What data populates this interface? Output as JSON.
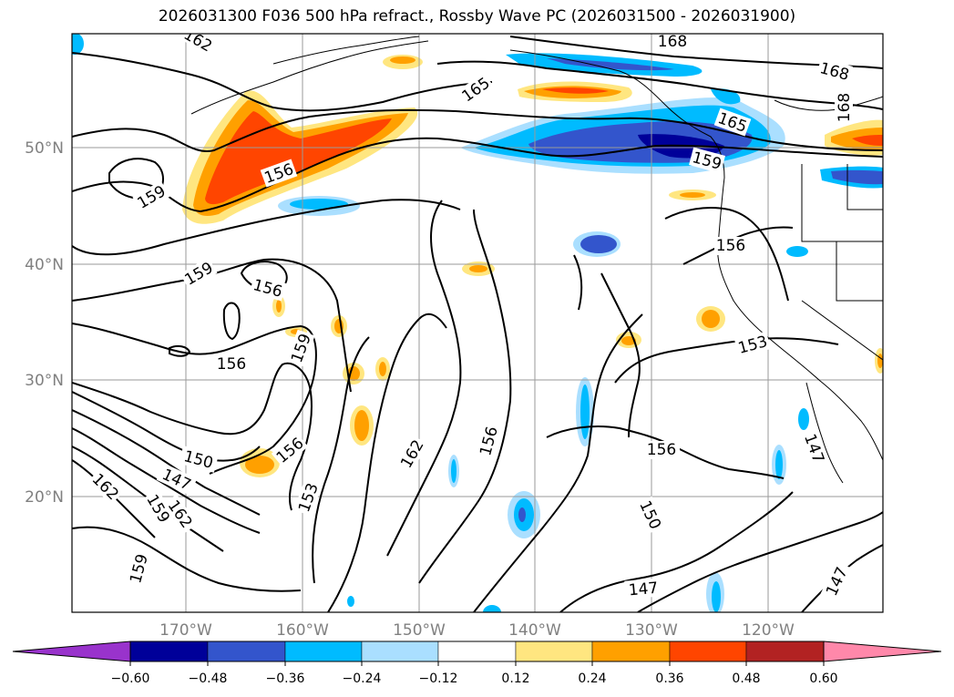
{
  "title": "2026031300 F036 500 hPa refract., Rossby Wave PC (2026031500 - 2026031900)",
  "latitude_labels": [
    "50°N",
    "40°N",
    "30°N",
    "20°N"
  ],
  "longitude_labels": [
    "170°W",
    "160°W",
    "150°W",
    "140°W",
    "130°W",
    "120°W"
  ],
  "colorbar": {
    "ticks": [
      "−0.60",
      "−0.48",
      "−0.36",
      "−0.24",
      "−0.12",
      "0.12",
      "0.24",
      "0.36",
      "0.48",
      "0.60"
    ],
    "colors": [
      "#9933cc",
      "#000099",
      "#3355cc",
      "#00bbff",
      "#aadfff",
      "#ffffff",
      "#ffe680",
      "#ffa000",
      "#ff4500",
      "#b22222",
      "#ff88aa"
    ]
  },
  "contour_labels": [
    "162",
    "165",
    "168",
    "168",
    "168",
    "165",
    "159",
    "156",
    "159",
    "159",
    "156",
    "156",
    "159",
    "153",
    "156",
    "150",
    "147",
    "162",
    "162",
    "159",
    "156",
    "156",
    "150",
    "156",
    "162",
    "153",
    "147",
    "147",
    "147",
    "159"
  ],
  "colors": {
    "positive_light": "#ffe680",
    "positive_mid": "#ffa000",
    "positive_strong": "#ff4500",
    "negative_light": "#aadfff",
    "negative_mid": "#00bbff",
    "negative_strong": "#3355cc",
    "negative_max": "#000099"
  }
}
